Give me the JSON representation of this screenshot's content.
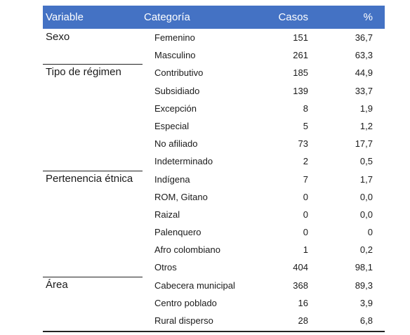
{
  "header": {
    "variable": "Variable",
    "categoria": "Categoría",
    "casos": "Casos",
    "pct": "%"
  },
  "rows": [
    {
      "variable": "Sexo",
      "categoria": "Femenino",
      "casos": "151",
      "pct": "36,7"
    },
    {
      "variable": "",
      "categoria": "Masculino",
      "casos": "261",
      "pct": "63,3"
    },
    {
      "variable": "Tipo de régimen",
      "categoria": "Contributivo",
      "casos": "185",
      "pct": "44,9"
    },
    {
      "variable": "",
      "categoria": "Subsidiado",
      "casos": "139",
      "pct": "33,7"
    },
    {
      "variable": "",
      "categoria": "Excepción",
      "casos": "8",
      "pct": "1,9"
    },
    {
      "variable": "",
      "categoria": "Especial",
      "casos": "5",
      "pct": "1,2"
    },
    {
      "variable": "",
      "categoria": "No afiliado",
      "casos": "73",
      "pct": "17,7"
    },
    {
      "variable": "",
      "categoria": "Indeterminado",
      "casos": "2",
      "pct": "0,5"
    },
    {
      "variable": "Pertenencia étnica",
      "categoria": "Indígena",
      "casos": "7",
      "pct": "1,7"
    },
    {
      "variable": "",
      "categoria": "ROM, Gitano",
      "casos": "0",
      "pct": "0,0"
    },
    {
      "variable": "",
      "categoria": "Raizal",
      "casos": "0",
      "pct": "0,0"
    },
    {
      "variable": "",
      "categoria": "Palenquero",
      "casos": "0",
      "pct": "0"
    },
    {
      "variable": "",
      "categoria": "Afro colombiano",
      "casos": "1",
      "pct": "0,2"
    },
    {
      "variable": "",
      "categoria": "Otros",
      "casos": "404",
      "pct": "98,1"
    },
    {
      "variable": "Área",
      "categoria": "Cabecera municipal",
      "casos": "368",
      "pct": "89,3"
    },
    {
      "variable": "",
      "categoria": "Centro poblado",
      "casos": "16",
      "pct": "3,9"
    },
    {
      "variable": "",
      "categoria": "Rural disperso",
      "casos": "28",
      "pct": "6,8"
    }
  ],
  "colors": {
    "header_bg": "#4472c4",
    "header_text": "#ffffff",
    "rule": "#222222"
  }
}
